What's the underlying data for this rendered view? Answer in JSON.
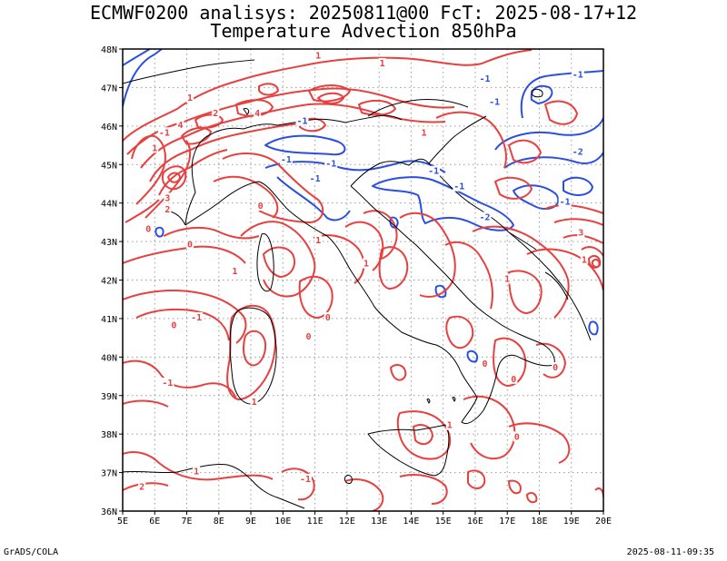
{
  "header": {
    "line1": "ECMWF0200 analisys: 20250811@00 FcT: 2025-08-17+12",
    "line2": "Temperature Advection 850hPa"
  },
  "footer": {
    "left": "GrADS/COLA",
    "right": "2025-08-11-09:35"
  },
  "map": {
    "lon_range": [
      5,
      20
    ],
    "lat_range": [
      36,
      48
    ],
    "x_ticks": [
      {
        "value": 5,
        "label": "5E"
      },
      {
        "value": 6,
        "label": "6E"
      },
      {
        "value": 7,
        "label": "7E"
      },
      {
        "value": 8,
        "label": "8E"
      },
      {
        "value": 9,
        "label": "9E"
      },
      {
        "value": 10,
        "label": "10E"
      },
      {
        "value": 11,
        "label": "11E"
      },
      {
        "value": 12,
        "label": "12E"
      },
      {
        "value": 13,
        "label": "13E"
      },
      {
        "value": 14,
        "label": "14E"
      },
      {
        "value": 15,
        "label": "15E"
      },
      {
        "value": 16,
        "label": "16E"
      },
      {
        "value": 17,
        "label": "17E"
      },
      {
        "value": 18,
        "label": "18E"
      },
      {
        "value": 19,
        "label": "19E"
      },
      {
        "value": 20,
        "label": "20E"
      }
    ],
    "y_ticks": [
      {
        "value": 36,
        "label": "36N"
      },
      {
        "value": 37,
        "label": "37N"
      },
      {
        "value": 38,
        "label": "38N"
      },
      {
        "value": 39,
        "label": "39N"
      },
      {
        "value": 40,
        "label": "40N"
      },
      {
        "value": 41,
        "label": "41N"
      },
      {
        "value": 42,
        "label": "42N"
      },
      {
        "value": 43,
        "label": "43N"
      },
      {
        "value": 44,
        "label": "44N"
      },
      {
        "value": 45,
        "label": "45N"
      },
      {
        "value": 46,
        "label": "46N"
      },
      {
        "value": 47,
        "label": "47N"
      },
      {
        "value": 48,
        "label": "48N"
      }
    ],
    "grid": true,
    "colors": {
      "positive": "#e8403f",
      "negative": "#2b4fe0",
      "coast": "#000000",
      "grid": "#9a9a9a"
    },
    "contour_labels": [
      {
        "text": "-1",
        "lon": 16.3,
        "lat": 47.2,
        "sign": "neg"
      },
      {
        "text": "-1",
        "lon": 16.6,
        "lat": 46.6,
        "sign": "neg"
      },
      {
        "text": "-1",
        "lon": 19.2,
        "lat": 47.3,
        "sign": "neg"
      },
      {
        "text": "-1",
        "lon": 10.6,
        "lat": 46.1,
        "sign": "neg"
      },
      {
        "text": "-1",
        "lon": 10.1,
        "lat": 45.1,
        "sign": "neg"
      },
      {
        "text": "-1",
        "lon": 11.5,
        "lat": 45.0,
        "sign": "neg"
      },
      {
        "text": "-1",
        "lon": 11.0,
        "lat": 44.6,
        "sign": "neg"
      },
      {
        "text": "-1",
        "lon": 14.7,
        "lat": 44.8,
        "sign": "neg"
      },
      {
        "text": "-1",
        "lon": 15.5,
        "lat": 44.4,
        "sign": "neg"
      },
      {
        "text": "-2",
        "lon": 19.2,
        "lat": 45.3,
        "sign": "neg"
      },
      {
        "text": "-1",
        "lon": 18.8,
        "lat": 44.0,
        "sign": "neg"
      },
      {
        "text": "-2",
        "lon": 16.3,
        "lat": 43.6,
        "sign": "neg"
      },
      {
        "text": "1",
        "lon": 11.1,
        "lat": 47.8,
        "sign": "pos"
      },
      {
        "text": "1",
        "lon": 13.1,
        "lat": 47.6,
        "sign": "pos"
      },
      {
        "text": "1",
        "lon": 7.1,
        "lat": 46.7,
        "sign": "pos"
      },
      {
        "text": "2",
        "lon": 7.9,
        "lat": 46.3,
        "sign": "pos"
      },
      {
        "text": "4",
        "lon": 9.2,
        "lat": 46.3,
        "sign": "pos"
      },
      {
        "text": "4",
        "lon": 6.8,
        "lat": 46.0,
        "sign": "pos"
      },
      {
        "text": "1",
        "lon": 14.4,
        "lat": 45.8,
        "sign": "pos"
      },
      {
        "text": "-1",
        "lon": 6.3,
        "lat": 45.8,
        "sign": "pos"
      },
      {
        "text": "1",
        "lon": 6.0,
        "lat": 45.4,
        "sign": "pos"
      },
      {
        "text": "3",
        "lon": 6.4,
        "lat": 44.1,
        "sign": "pos"
      },
      {
        "text": "2",
        "lon": 6.4,
        "lat": 43.8,
        "sign": "pos"
      },
      {
        "text": "0",
        "lon": 5.8,
        "lat": 43.3,
        "sign": "pos"
      },
      {
        "text": "0",
        "lon": 7.1,
        "lat": 42.9,
        "sign": "pos"
      },
      {
        "text": "1",
        "lon": 8.5,
        "lat": 42.2,
        "sign": "pos"
      },
      {
        "text": "0",
        "lon": 9.3,
        "lat": 43.9,
        "sign": "pos"
      },
      {
        "text": "1",
        "lon": 11.1,
        "lat": 43.0,
        "sign": "pos"
      },
      {
        "text": "1",
        "lon": 12.6,
        "lat": 42.4,
        "sign": "pos"
      },
      {
        "text": "0",
        "lon": 11.4,
        "lat": 41.0,
        "sign": "pos"
      },
      {
        "text": "0",
        "lon": 6.6,
        "lat": 40.8,
        "sign": "pos"
      },
      {
        "text": "-1",
        "lon": 7.3,
        "lat": 41.0,
        "sign": "pos"
      },
      {
        "text": "0",
        "lon": 10.8,
        "lat": 40.5,
        "sign": "pos"
      },
      {
        "text": "-1",
        "lon": 6.4,
        "lat": 39.3,
        "sign": "pos"
      },
      {
        "text": "1",
        "lon": 9.1,
        "lat": 38.8,
        "sign": "pos"
      },
      {
        "text": "0",
        "lon": 16.3,
        "lat": 39.8,
        "sign": "pos"
      },
      {
        "text": "1",
        "lon": 17.0,
        "lat": 42.0,
        "sign": "pos"
      },
      {
        "text": "0",
        "lon": 17.2,
        "lat": 39.4,
        "sign": "pos"
      },
      {
        "text": "0",
        "lon": 18.5,
        "lat": 39.7,
        "sign": "pos"
      },
      {
        "text": "3",
        "lon": 19.3,
        "lat": 43.2,
        "sign": "pos"
      },
      {
        "text": "1",
        "lon": 19.4,
        "lat": 42.5,
        "sign": "pos"
      },
      {
        "text": "0",
        "lon": 17.3,
        "lat": 37.9,
        "sign": "pos"
      },
      {
        "text": "-1",
        "lon": 10.7,
        "lat": 36.8,
        "sign": "pos"
      },
      {
        "text": "2",
        "lon": 5.6,
        "lat": 36.6,
        "sign": "pos"
      },
      {
        "text": "1",
        "lon": 15.2,
        "lat": 38.2,
        "sign": "pos"
      },
      {
        "text": "1",
        "lon": 7.3,
        "lat": 37.0,
        "sign": "pos"
      }
    ]
  }
}
